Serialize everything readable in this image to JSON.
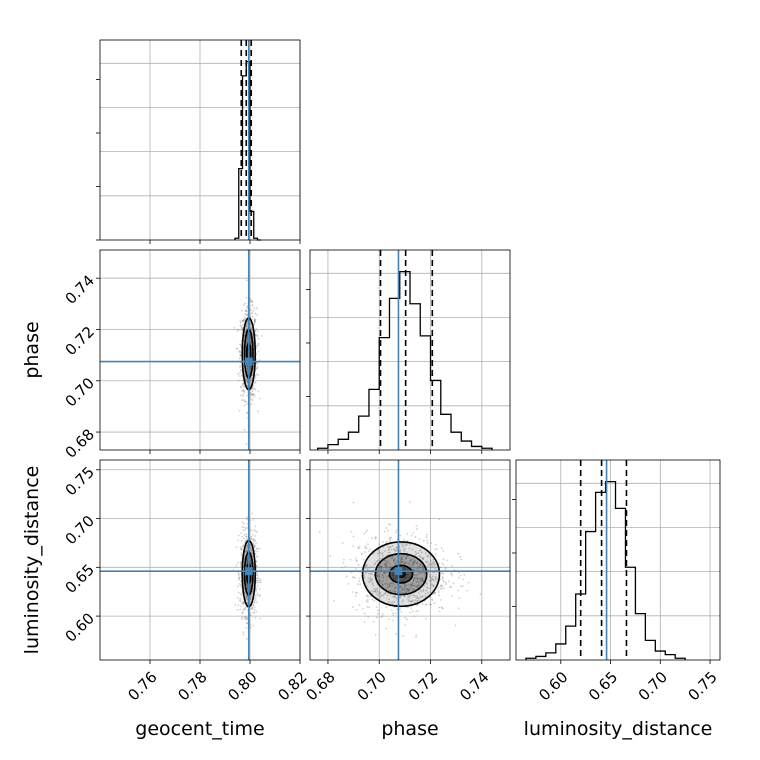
{
  "chart_data": {
    "type": "corner",
    "parameters": [
      {
        "name": "geocent_time",
        "label": "geocent_time",
        "range": [
          0.74,
          0.82
        ],
        "ticks": [
          "0.76",
          "0.78",
          "0.80",
          "0.82"
        ],
        "truth": 0.7995,
        "quantiles": [
          0.7965,
          0.7985,
          0.8005
        ],
        "hist": {
          "edges": [
            0.794,
            0.7955,
            0.797,
            0.7985,
            0.8,
            0.8015,
            0.803,
            0.8045
          ],
          "counts": [
            0.01,
            0.4,
            0.92,
            1.0,
            0.16,
            0.01,
            0.0
          ]
        }
      },
      {
        "name": "phase",
        "label": "phase",
        "range": [
          0.673,
          0.751
        ],
        "ticks": [
          "0.68",
          "0.70",
          "0.72",
          "0.74"
        ],
        "truth": 0.7075,
        "quantiles": [
          0.7005,
          0.7103,
          0.7207
        ],
        "hist": {
          "edges": [
            0.676,
            0.68,
            0.684,
            0.688,
            0.692,
            0.696,
            0.7,
            0.704,
            0.708,
            0.712,
            0.716,
            0.72,
            0.724,
            0.728,
            0.732,
            0.736,
            0.74,
            0.744
          ],
          "counts": [
            0.01,
            0.03,
            0.06,
            0.1,
            0.19,
            0.34,
            0.63,
            0.85,
            1.0,
            0.82,
            0.64,
            0.39,
            0.2,
            0.1,
            0.05,
            0.02,
            0.01
          ]
        }
      },
      {
        "name": "luminosity_distance",
        "label": "luminosity_distance",
        "range": [
          0.555,
          0.76
        ],
        "ticks": [
          "0.60",
          "0.65",
          "0.70",
          "0.75"
        ],
        "truth": 0.646,
        "quantiles": [
          0.62,
          0.641,
          0.666
        ],
        "hist": {
          "edges": [
            0.565,
            0.575,
            0.585,
            0.595,
            0.605,
            0.615,
            0.625,
            0.635,
            0.645,
            0.655,
            0.665,
            0.675,
            0.685,
            0.695,
            0.705,
            0.715,
            0.725
          ],
          "counts": [
            0.01,
            0.02,
            0.04,
            0.09,
            0.19,
            0.37,
            0.72,
            0.94,
            1.0,
            0.85,
            0.52,
            0.26,
            0.11,
            0.05,
            0.03,
            0.01
          ]
        }
      }
    ],
    "pairs": [
      {
        "x": "geocent_time",
        "y": "phase",
        "x_center": 0.7995,
        "y_center": 0.7105,
        "x_spread": [
          0.0008,
          0.0017,
          0.0026
        ],
        "y_spread": [
          0.004,
          0.0095,
          0.014
        ]
      },
      {
        "x": "geocent_time",
        "y": "luminosity_distance",
        "x_center": 0.7995,
        "y_center": 0.6435,
        "x_spread": [
          0.0008,
          0.0017,
          0.0026
        ],
        "y_spread": [
          0.01,
          0.022,
          0.034
        ]
      },
      {
        "x": "phase",
        "y": "luminosity_distance",
        "x_center": 0.7085,
        "y_center": 0.643,
        "x_spread": [
          0.0045,
          0.01,
          0.015
        ],
        "y_spread": [
          0.009,
          0.021,
          0.033
        ]
      }
    ],
    "colors": {
      "truth": "#4682b4",
      "contour": "#000000",
      "scatter": "#7f7f7f",
      "density": "#000000"
    },
    "grid": true
  }
}
